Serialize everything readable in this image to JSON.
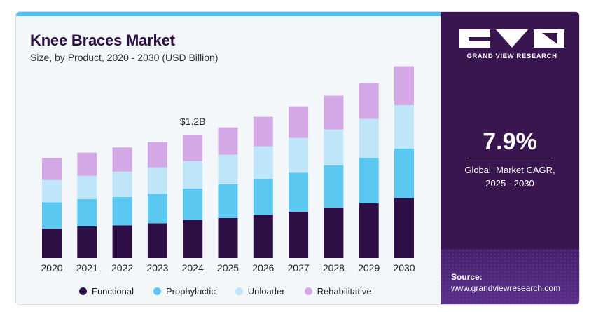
{
  "header": {
    "title": "Knee Braces Market",
    "subtitle": "Size, by Product, 2020 - 2030 (USD Billion)"
  },
  "brand": {
    "name": "GRAND VIEW RESEARCH"
  },
  "stats": {
    "cagr_value": "7.9%",
    "cagr_label_line1": "Global  Market CAGR,",
    "cagr_label_line2": "2025 - 2030"
  },
  "source": {
    "label": "Source:",
    "url": "www.grandviewresearch.com"
  },
  "colors": {
    "Functional": "#2e0f45",
    "Prophylactic": "#5bc8f2",
    "Unloader": "#bfe6f8",
    "Rehabilitative": "#d4a8e6",
    "side_panel": "#3a1650",
    "accent_bar": "#4fc3f7"
  },
  "chart_data": {
    "type": "bar",
    "stacked": true,
    "title": "Knee Braces Market",
    "subtitle": "Size, by Product, 2020 - 2030 (USD Billion)",
    "xlabel": "",
    "ylabel": "",
    "ylim": [
      0,
      1.85
    ],
    "grid": false,
    "legend_position": "bottom",
    "categories": [
      "2020",
      "2021",
      "2022",
      "2023",
      "2024",
      "2025",
      "2026",
      "2027",
      "2028",
      "2029",
      "2030"
    ],
    "series": [
      {
        "name": "Functional",
        "values": [
          0.28,
          0.3,
          0.31,
          0.33,
          0.36,
          0.38,
          0.41,
          0.44,
          0.48,
          0.52,
          0.57
        ]
      },
      {
        "name": "Prophylactic",
        "values": [
          0.25,
          0.26,
          0.27,
          0.28,
          0.3,
          0.32,
          0.34,
          0.37,
          0.4,
          0.43,
          0.47
        ]
      },
      {
        "name": "Unloader",
        "values": [
          0.21,
          0.22,
          0.24,
          0.25,
          0.26,
          0.28,
          0.31,
          0.33,
          0.34,
          0.37,
          0.41
        ]
      },
      {
        "name": "Rehabilitative",
        "values": [
          0.21,
          0.22,
          0.23,
          0.24,
          0.25,
          0.26,
          0.28,
          0.3,
          0.32,
          0.34,
          0.37
        ]
      }
    ],
    "annotations": [
      {
        "category": "2024",
        "text": "$1.2B"
      }
    ]
  }
}
